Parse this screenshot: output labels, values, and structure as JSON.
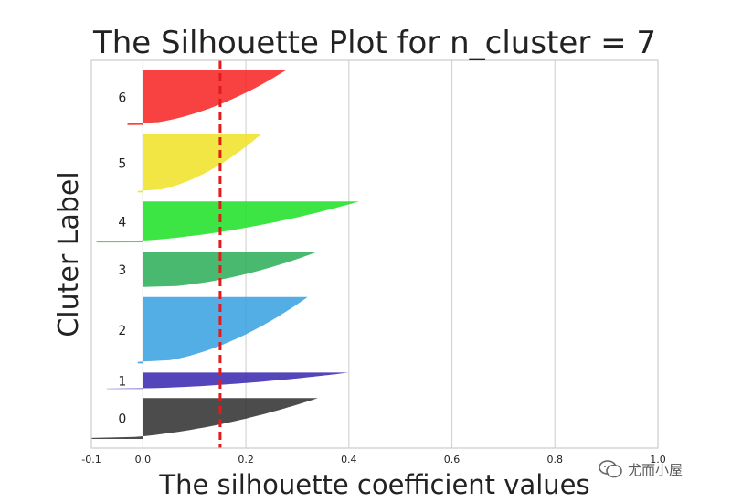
{
  "chart_data": {
    "type": "area",
    "title": "The Silhouette Plot for n_cluster = 7",
    "xlabel": "The silhouette coefficient values",
    "ylabel": "Cluter Label",
    "xlim": [
      -0.1,
      1.0
    ],
    "xticks": [
      -0.1,
      0.0,
      0.2,
      0.4,
      0.6,
      0.8,
      1.0
    ],
    "xtick_labels": [
      "-0.1",
      "0.0",
      "0.2",
      "0.4",
      "0.6",
      "0.8",
      "1.0"
    ],
    "grid": true,
    "average_silhouette_score": 0.15,
    "average_line_color": "#e41a1c",
    "clusters": [
      {
        "label": "0",
        "color": "#333333",
        "max_coefficient": 0.34,
        "min_coefficient": -0.1,
        "size": 45
      },
      {
        "label": "1",
        "color": "#3d2bb0",
        "max_coefficient": 0.4,
        "min_coefficient": -0.07,
        "size": 18
      },
      {
        "label": "2",
        "color": "#3aa3e0",
        "max_coefficient": 0.32,
        "min_coefficient": -0.01,
        "size": 73
      },
      {
        "label": "3",
        "color": "#2faf5a",
        "max_coefficient": 0.34,
        "min_coefficient": 0.0,
        "size": 40
      },
      {
        "label": "4",
        "color": "#22e12a",
        "max_coefficient": 0.42,
        "min_coefficient": -0.09,
        "size": 45
      },
      {
        "label": "5",
        "color": "#f0e22b",
        "max_coefficient": 0.23,
        "min_coefficient": -0.01,
        "size": 64
      },
      {
        "label": "6",
        "color": "#f72828",
        "max_coefficient": 0.28,
        "min_coefficient": -0.03,
        "size": 61
      }
    ]
  },
  "watermark": {
    "text": "尤而小屋"
  }
}
